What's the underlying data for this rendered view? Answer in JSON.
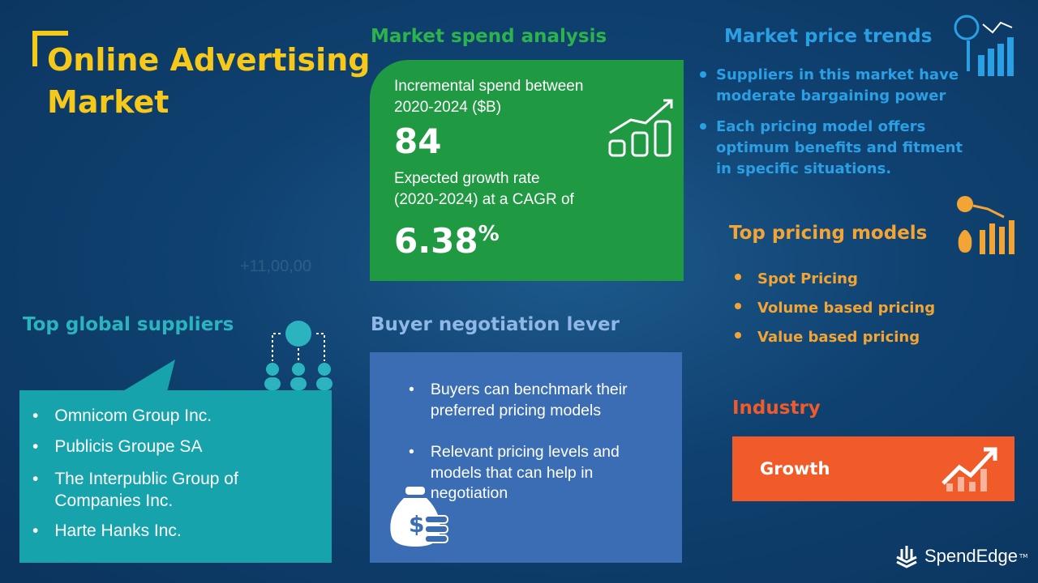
{
  "background_text": "+11,00,00",
  "title": {
    "line1": "Online Advertising",
    "line2": "Market"
  },
  "market_spend": {
    "heading": "Market spend analysis",
    "incremental_label_1": "Incremental spend between",
    "incremental_label_2": "2020-2024 ($B)",
    "incremental_value": "84",
    "growth_label_1": "Expected growth rate",
    "growth_label_2": "(2020-2024) at a CAGR of",
    "cagr_value": "6.38",
    "cagr_unit": "%",
    "color": "#1f9a43"
  },
  "price_trends": {
    "heading": "Market price trends",
    "items": [
      "Suppliers in this market have moderate bargaining power",
      "Each pricing model offers optimum benefits and fitment in specific situations."
    ],
    "color": "#2a9fe3"
  },
  "pricing_models": {
    "heading": "Top pricing models",
    "items": [
      "Spot Pricing",
      "Volume based pricing",
      "Value based pricing"
    ],
    "color": "#f2a435"
  },
  "industry": {
    "heading": "Industry",
    "value": "Growth",
    "color": "#f15a29"
  },
  "suppliers": {
    "heading": "Top global suppliers",
    "items": [
      "Omnicom Group Inc.",
      "Publicis Groupe SA",
      "The Interpublic Group of Companies Inc.",
      "Harte Hanks Inc."
    ],
    "color": "#16a3ab"
  },
  "negotiation": {
    "heading": "Buyer negotiation lever",
    "items": [
      "Buyers can benchmark their preferred pricing models",
      "Relevant pricing levels and models that can help in negotiation"
    ],
    "color": "#3a6db3"
  },
  "brand": {
    "name": "SpendEdge",
    "tm": "TM"
  }
}
